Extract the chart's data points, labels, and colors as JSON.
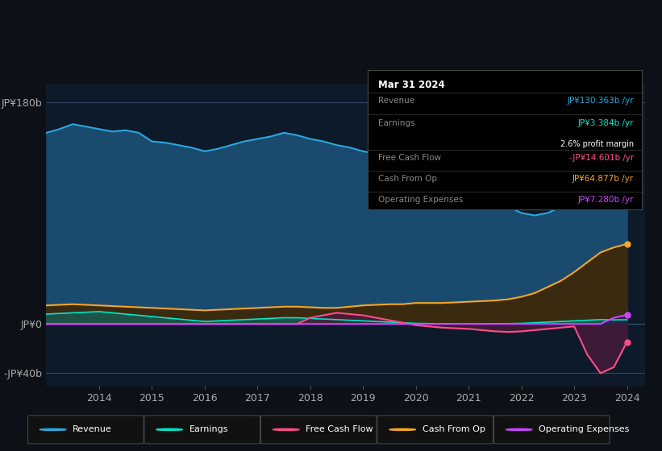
{
  "bg_color": "#0d1117",
  "plot_bg_color": "#0d1a2a",
  "years": [
    2013,
    2013.25,
    2013.5,
    2013.75,
    2014,
    2014.25,
    2014.5,
    2014.75,
    2015,
    2015.25,
    2015.5,
    2015.75,
    2016,
    2016.25,
    2016.5,
    2016.75,
    2017,
    2017.25,
    2017.5,
    2017.75,
    2018,
    2018.25,
    2018.5,
    2018.75,
    2019,
    2019.25,
    2019.5,
    2019.75,
    2020,
    2020.25,
    2020.5,
    2020.75,
    2021,
    2021.25,
    2021.5,
    2021.75,
    2022,
    2022.25,
    2022.5,
    2022.75,
    2023,
    2023.25,
    2023.5,
    2023.75,
    2024
  ],
  "revenue": [
    155,
    158,
    162,
    160,
    158,
    156,
    157,
    155,
    148,
    147,
    145,
    143,
    140,
    142,
    145,
    148,
    150,
    152,
    155,
    153,
    150,
    148,
    145,
    143,
    140,
    138,
    136,
    134,
    132,
    128,
    122,
    115,
    105,
    100,
    98,
    95,
    90,
    88,
    90,
    95,
    100,
    108,
    115,
    122,
    130
  ],
  "earnings": [
    8,
    8.5,
    9,
    9.5,
    10,
    9,
    8,
    7,
    6,
    5,
    4,
    3,
    2,
    2.5,
    3,
    3.5,
    4,
    4.5,
    5,
    5,
    4.5,
    4,
    3.5,
    3,
    2.5,
    2,
    1.5,
    1,
    0.5,
    0.3,
    0.2,
    0.1,
    0.05,
    0.1,
    0.2,
    0.3,
    0.5,
    1,
    1.5,
    2,
    2.5,
    3,
    3.5,
    3.3,
    3.4
  ],
  "free_cash_flow": [
    0,
    0,
    0,
    0,
    0,
    0,
    0,
    0,
    0,
    0,
    0,
    0,
    0,
    0,
    0,
    0,
    0,
    0,
    0,
    0,
    5,
    7,
    9,
    8,
    7,
    5,
    3,
    1,
    -1,
    -2,
    -3,
    -3.5,
    -4,
    -5,
    -6,
    -6.5,
    -6,
    -5,
    -4,
    -3,
    -2,
    -25,
    -40,
    -35,
    -14.6
  ],
  "cash_from_op": [
    15,
    15.5,
    16,
    15.5,
    15,
    14.5,
    14,
    13.5,
    13,
    12.5,
    12,
    11.5,
    11,
    11.5,
    12,
    12.5,
    13,
    13.5,
    14,
    14,
    13.5,
    13,
    13,
    14,
    15,
    15.5,
    16,
    16,
    17,
    17,
    17,
    17.5,
    18,
    18.5,
    19,
    20,
    22,
    25,
    30,
    35,
    42,
    50,
    58,
    62,
    64.9
  ],
  "operating_expenses": [
    0,
    0,
    0,
    0,
    0,
    0,
    0,
    0,
    0,
    0,
    0,
    0,
    0,
    0,
    0,
    0,
    0,
    0,
    0,
    0,
    0,
    0,
    0,
    0,
    0,
    0,
    0,
    0,
    0,
    0,
    0,
    0,
    0,
    0,
    0,
    0,
    0,
    0,
    0,
    0,
    0,
    0,
    0,
    5,
    7.3
  ],
  "ylim": [
    -50,
    195
  ],
  "yticks": [
    -40,
    0,
    180
  ],
  "ytick_labels": [
    "-JP¥40b",
    "JP¥0",
    "JP¥180b"
  ],
  "xticks": [
    2014,
    2015,
    2016,
    2017,
    2018,
    2019,
    2020,
    2021,
    2022,
    2023,
    2024
  ],
  "revenue_color": "#29a8e0",
  "revenue_fill": "#1a4a6e",
  "earnings_color": "#00e5c8",
  "earnings_fill": "#1a5a50",
  "fcf_color": "#ff4d88",
  "fcf_fill": "#4a1a3a",
  "cashop_color": "#f5a623",
  "cashop_fill": "#3a2a10",
  "opex_color": "#cc44ff",
  "opex_fill": "#2a1a4a",
  "tooltip_title": "Mar 31 2024",
  "tooltip_revenue_label": "Revenue",
  "tooltip_revenue_value": "JP¥130.363b /yr",
  "tooltip_revenue_color": "#29a8e0",
  "tooltip_earnings_label": "Earnings",
  "tooltip_earnings_value": "JP¥3.384b /yr",
  "tooltip_earnings_color": "#00e5c8",
  "tooltip_margin_text": "2.6% profit margin",
  "tooltip_fcf_label": "Free Cash Flow",
  "tooltip_fcf_value": "-JP¥14.601b /yr",
  "tooltip_fcf_color": "#ff4d88",
  "tooltip_cashop_label": "Cash From Op",
  "tooltip_cashop_value": "JP¥64.877b /yr",
  "tooltip_cashop_color": "#f5a623",
  "tooltip_opex_label": "Operating Expenses",
  "tooltip_opex_value": "JP¥7.280b /yr",
  "tooltip_opex_color": "#cc44ff",
  "legend_items": [
    {
      "label": "Revenue",
      "color": "#29a8e0"
    },
    {
      "label": "Earnings",
      "color": "#00e5c8"
    },
    {
      "label": "Free Cash Flow",
      "color": "#ff4d88"
    },
    {
      "label": "Cash From Op",
      "color": "#f5a623"
    },
    {
      "label": "Operating Expenses",
      "color": "#cc44ff"
    }
  ]
}
